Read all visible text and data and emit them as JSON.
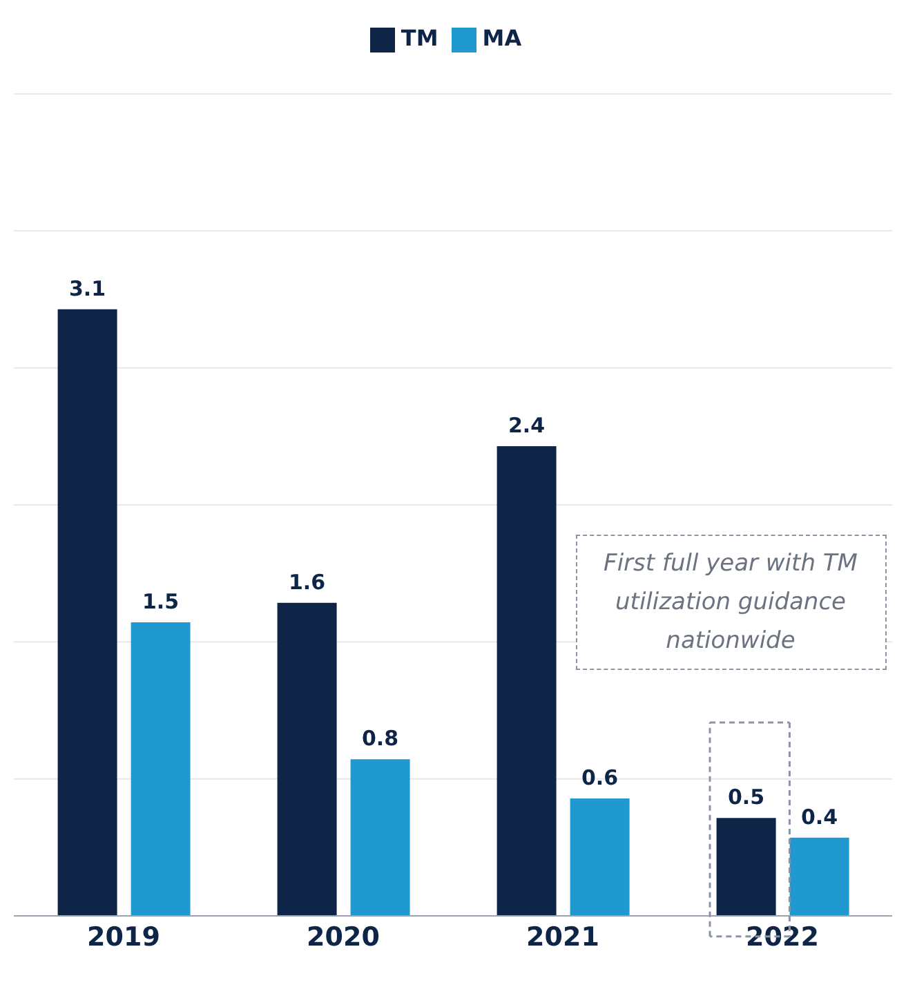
{
  "chart_data": {
    "type": "bar",
    "categories": [
      "2019",
      "2020",
      "2021",
      "2022"
    ],
    "series": [
      {
        "name": "TM",
        "color": "#0f2548",
        "values": [
          3.1,
          1.6,
          2.4,
          0.5
        ]
      },
      {
        "name": "MA",
        "color": "#2099d1",
        "values": [
          1.5,
          0.8,
          0.6,
          0.4
        ]
      }
    ],
    "ylim": [
      0,
      4.2
    ],
    "yticks": [
      {
        "value": 0,
        "label": null
      },
      {
        "value": 0.7,
        "label": null
      },
      {
        "value": 1.4,
        "label": null
      },
      {
        "value": 2.1,
        "label": null
      },
      {
        "value": 2.8,
        "label": null
      },
      {
        "value": 3.5,
        "label": null
      },
      {
        "value": 4.2,
        "label": null
      }
    ],
    "grid": "y",
    "legend": "top",
    "data_labels": true,
    "tick_labels": "x",
    "annotations": [
      "First full year with TM utilization guidance nationwide"
    ]
  }
}
